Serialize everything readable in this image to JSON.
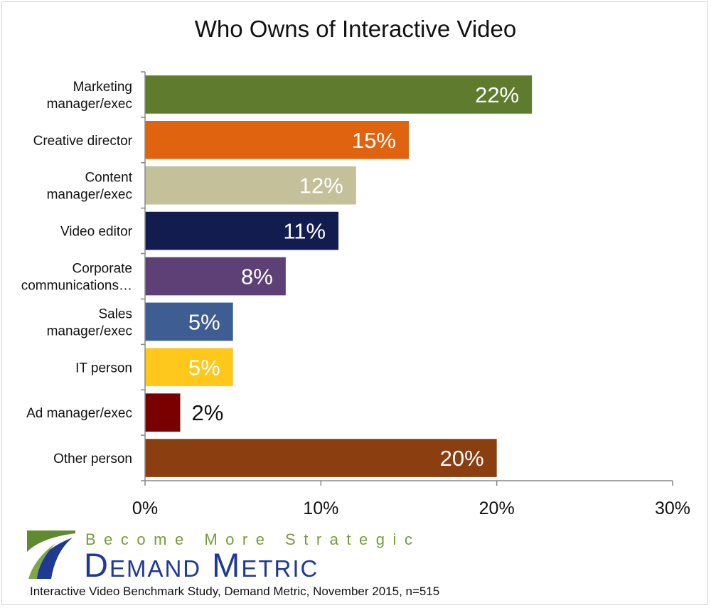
{
  "chart_data": {
    "type": "bar",
    "orientation": "horizontal",
    "title": "Who Owns of Interactive Video",
    "categories": [
      [
        "Marketing",
        "manager/exec"
      ],
      [
        "Creative director"
      ],
      [
        "Content",
        "manager/exec"
      ],
      [
        "Video editor"
      ],
      [
        "Corporate",
        "communications…"
      ],
      [
        "Sales",
        "manager/exec"
      ],
      [
        "IT person"
      ],
      [
        "Ad manager/exec"
      ],
      [
        "Other person"
      ]
    ],
    "values": [
      22,
      15,
      12,
      11,
      8,
      5,
      5,
      2,
      20
    ],
    "data_labels": [
      "22%",
      "15%",
      "12%",
      "11%",
      "8%",
      "5%",
      "5%",
      "2%",
      "20%"
    ],
    "colors": [
      "#5f7c2e",
      "#e06410",
      "#c4c09a",
      "#121c4e",
      "#5d4176",
      "#3e5d93",
      "#ffc81a",
      "#7a0000",
      "#8b3e0f"
    ],
    "xlim": [
      0,
      30
    ],
    "xticks": [
      0,
      10,
      20,
      30
    ],
    "xtick_labels": [
      "0%",
      "10%",
      "20%",
      "30%"
    ],
    "grid": false,
    "legend": "none"
  },
  "logo": {
    "tagline": "Become More Strategic",
    "brand": "Demand Metric"
  },
  "source": "Interactive Video Benchmark Study, Demand Metric, November 2015, n=515"
}
